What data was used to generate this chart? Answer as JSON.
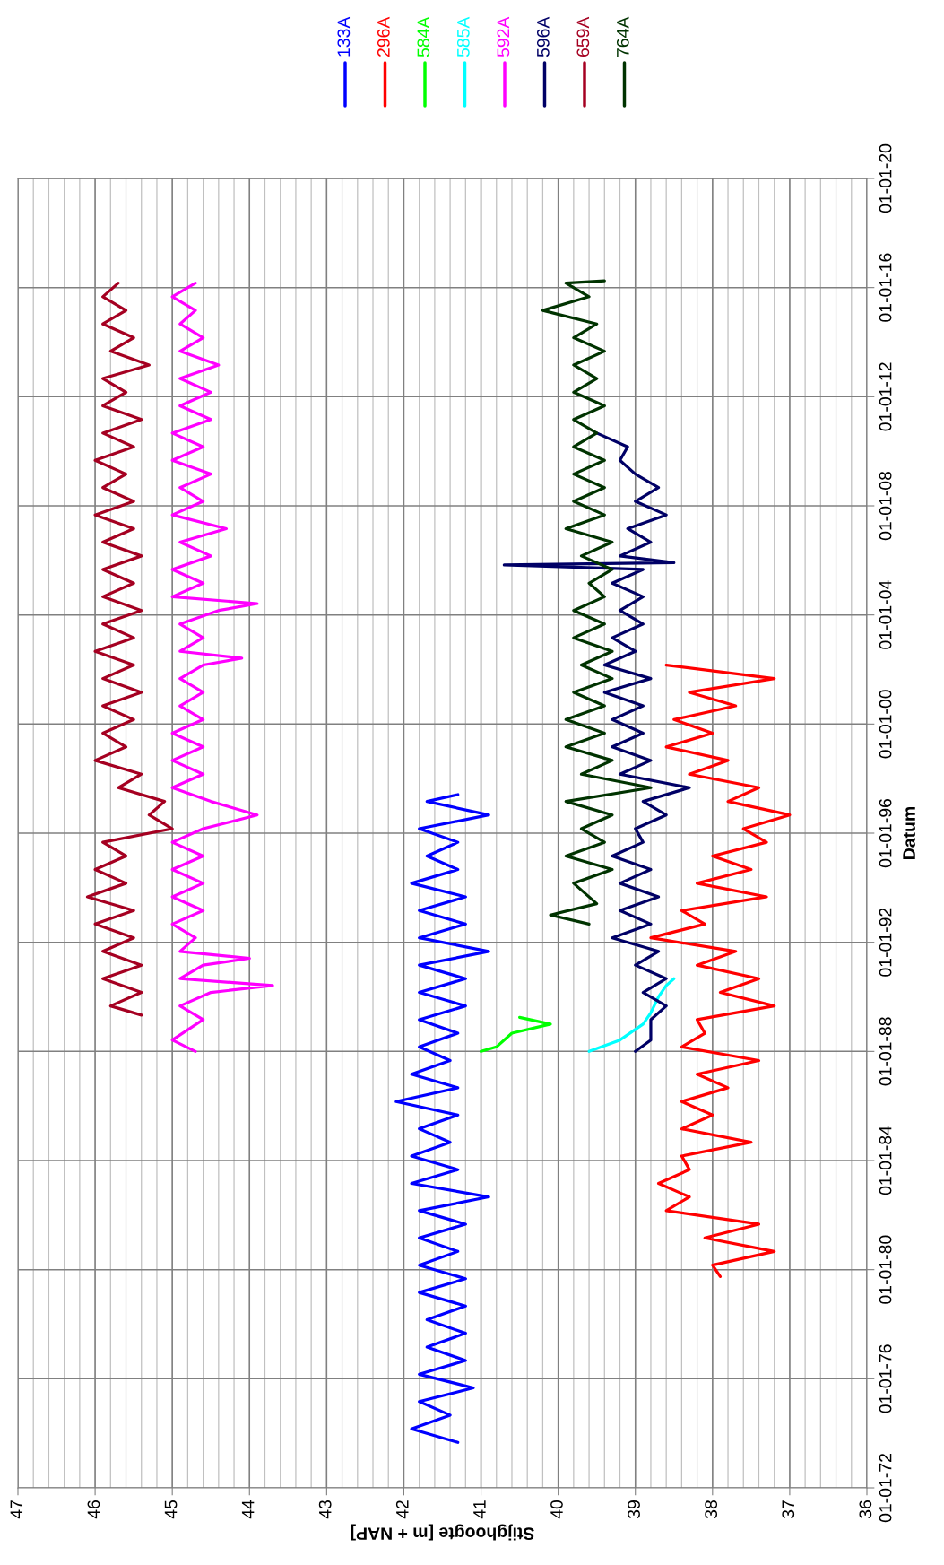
{
  "chart_data": {
    "type": "line",
    "orientation": "horizontal",
    "ylabel": "Datum",
    "xlabel": "Stijghoogte [m + NAP]",
    "ylim": [
      "1972-01-01",
      "2020-01-01"
    ],
    "xlim": [
      47,
      36
    ],
    "yticks": [
      {
        "value": "1972-01-01",
        "label": "01-01-72"
      },
      {
        "value": "1976-01-01",
        "label": "01-01-76"
      },
      {
        "value": "1980-01-01",
        "label": "01-01-80"
      },
      {
        "value": "1984-01-01",
        "label": "01-01-84"
      },
      {
        "value": "1988-01-01",
        "label": "01-01-88"
      },
      {
        "value": "1992-01-01",
        "label": "01-01-92"
      },
      {
        "value": "1996-01-01",
        "label": "01-01-96"
      },
      {
        "value": "2000-01-01",
        "label": "01-01-00"
      },
      {
        "value": "2004-01-01",
        "label": "01-01-04"
      },
      {
        "value": "2008-01-01",
        "label": "01-01-08"
      },
      {
        "value": "2012-01-01",
        "label": "01-01-12"
      },
      {
        "value": "2016-01-01",
        "label": "01-01-16"
      },
      {
        "value": "2020-01-01",
        "label": "01-01-20"
      }
    ],
    "xticks": [
      47,
      46,
      45,
      44,
      43,
      42,
      41,
      40,
      39,
      38,
      37,
      36
    ],
    "grid": true,
    "legend": "top right",
    "marker": "none",
    "line_style": "solid",
    "series": [
      {
        "name": "133A",
        "color": "#0000ff",
        "x": [
          "1973-09",
          "1974-03",
          "1974-09",
          "1975-03",
          "1975-09",
          "1976-03",
          "1976-09",
          "1977-03",
          "1977-09",
          "1978-03",
          "1978-09",
          "1979-03",
          "1979-09",
          "1980-03",
          "1980-09",
          "1981-03",
          "1981-09",
          "1982-03",
          "1982-09",
          "1983-03",
          "1983-09",
          "1984-03",
          "1984-09",
          "1985-03",
          "1985-09",
          "1986-03",
          "1986-09",
          "1987-03",
          "1987-09",
          "1988-03",
          "1988-09",
          "1989-03",
          "1989-09",
          "1990-03",
          "1990-09",
          "1991-03",
          "1991-09",
          "1992-03",
          "1992-09",
          "1993-03",
          "1993-09",
          "1994-03",
          "1994-09",
          "1995-03",
          "1995-09",
          "1996-03",
          "1996-09",
          "1997-03",
          "1997-06"
        ],
        "values": [
          41.3,
          41.9,
          41.4,
          41.8,
          41.1,
          41.8,
          41.2,
          41.7,
          41.2,
          41.7,
          41.2,
          41.8,
          41.2,
          41.8,
          41.3,
          41.8,
          41.2,
          41.8,
          40.9,
          41.9,
          41.3,
          41.9,
          41.4,
          41.8,
          41.3,
          42.1,
          41.3,
          41.9,
          41.4,
          41.8,
          41.3,
          41.8,
          41.2,
          41.8,
          41.2,
          41.8,
          40.9,
          41.8,
          41.2,
          41.8,
          41.2,
          41.9,
          41.3,
          41.7,
          41.3,
          41.8,
          40.9,
          41.7,
          41.3
        ]
      },
      {
        "name": "296A",
        "color": "#ff0000",
        "x": [
          "1979-10",
          "1980-03",
          "1980-09",
          "1981-03",
          "1981-09",
          "1982-03",
          "1982-09",
          "1983-03",
          "1983-09",
          "1984-03",
          "1984-09",
          "1985-03",
          "1985-09",
          "1986-03",
          "1986-09",
          "1987-03",
          "1987-09",
          "1988-03",
          "1988-09",
          "1989-03",
          "1989-09",
          "1990-03",
          "1990-09",
          "1991-03",
          "1991-09",
          "1992-03",
          "1992-09",
          "1993-03",
          "1993-09",
          "1994-03",
          "1994-09",
          "1995-03",
          "1995-09",
          "1996-03",
          "1996-09",
          "1997-03",
          "1997-09",
          "1998-03",
          "1998-09",
          "1999-03",
          "1999-09",
          "2000-03",
          "2000-09",
          "2001-03",
          "2001-09",
          "2002-03"
        ],
        "values": [
          37.9,
          38.0,
          37.2,
          38.1,
          37.4,
          38.6,
          38.3,
          38.7,
          38.3,
          38.4,
          37.5,
          38.4,
          38.0,
          38.4,
          37.8,
          38.2,
          37.4,
          38.4,
          38.1,
          38.2,
          37.2,
          37.9,
          37.4,
          38.2,
          37.7,
          38.8,
          38.1,
          38.4,
          37.3,
          38.2,
          37.5,
          38.0,
          37.3,
          37.6,
          37.0,
          37.8,
          37.4,
          38.3,
          37.8,
          38.6,
          38.0,
          38.5,
          37.7,
          38.3,
          37.2,
          38.6
        ]
      },
      {
        "name": "584A",
        "color": "#00ff00",
        "x": [
          "1988-01",
          "1988-03",
          "1988-09",
          "1989-01",
          "1989-04"
        ],
        "values": [
          41.0,
          40.8,
          40.6,
          40.1,
          40.5
        ]
      },
      {
        "name": "585A",
        "color": "#00ffff",
        "x": [
          "1988-01",
          "1988-06",
          "1989-01",
          "1989-06",
          "1990-01",
          "1990-06",
          "1990-09"
        ],
        "values": [
          39.6,
          39.2,
          38.9,
          38.8,
          38.7,
          38.6,
          38.5
        ]
      },
      {
        "name": "592A",
        "color": "#ff00ff",
        "x": [
          "1988-01",
          "1988-06",
          "1989-03",
          "1989-09",
          "1990-03",
          "1990-06",
          "1990-09",
          "1991-03",
          "1991-06",
          "1991-09",
          "1992-03",
          "1992-09",
          "1993-03",
          "1993-09",
          "1994-03",
          "1994-09",
          "1995-03",
          "1995-09",
          "1996-03",
          "1996-09",
          "1997-03",
          "1997-09",
          "1998-03",
          "1998-09",
          "1999-03",
          "1999-09",
          "2000-03",
          "2000-09",
          "2001-03",
          "2001-09",
          "2002-03",
          "2002-06",
          "2002-09",
          "2003-03",
          "2003-09",
          "2004-03",
          "2004-06",
          "2004-09",
          "2005-03",
          "2005-09",
          "2006-03",
          "2006-09",
          "2007-03",
          "2007-09",
          "2008-03",
          "2008-09",
          "2009-03",
          "2009-09",
          "2010-03",
          "2010-09",
          "2011-03",
          "2011-09",
          "2012-03",
          "2012-09",
          "2013-03",
          "2013-09",
          "2014-03",
          "2014-09",
          "2015-03",
          "2015-09",
          "2016-03"
        ],
        "values": [
          44.7,
          45.0,
          44.6,
          44.9,
          44.5,
          43.7,
          44.9,
          44.6,
          44.0,
          44.9,
          44.7,
          45.0,
          44.6,
          45.0,
          44.6,
          45.0,
          44.6,
          45.0,
          44.6,
          43.9,
          44.5,
          45.0,
          44.6,
          45.0,
          44.6,
          45.0,
          44.6,
          44.9,
          44.6,
          44.9,
          44.6,
          44.1,
          44.9,
          44.6,
          44.9,
          44.4,
          43.9,
          45.0,
          44.6,
          45.0,
          44.5,
          44.9,
          44.3,
          45.0,
          44.6,
          44.9,
          44.5,
          45.0,
          44.6,
          45.0,
          44.5,
          44.9,
          44.5,
          44.9,
          44.4,
          44.9,
          44.6,
          44.9,
          44.7,
          45.0,
          44.7
        ]
      },
      {
        "name": "596A",
        "color": "#000066",
        "x": [
          "1988-01",
          "1988-06",
          "1989-03",
          "1989-09",
          "1990-03",
          "1990-09",
          "1991-03",
          "1991-09",
          "1992-03",
          "1992-09",
          "1993-03",
          "1993-09",
          "1994-03",
          "1994-09",
          "1995-03",
          "1995-09",
          "1996-03",
          "1996-09",
          "1997-03",
          "1997-09",
          "1998-03",
          "1998-09",
          "1999-03",
          "1999-09",
          "2000-03",
          "2000-09",
          "2001-03",
          "2001-09",
          "2002-03",
          "2002-09",
          "2003-03",
          "2003-09",
          "2004-03",
          "2004-09",
          "2005-03",
          "2005-09",
          "2005-11",
          "2005-12",
          "2006-03",
          "2006-09",
          "2007-03",
          "2007-09",
          "2008-03",
          "2008-09",
          "2009-03",
          "2009-09",
          "2010-03",
          "2010-09"
        ],
        "values": [
          39.0,
          38.8,
          38.8,
          38.6,
          38.9,
          38.6,
          39.0,
          38.7,
          39.3,
          38.8,
          39.2,
          38.7,
          39.2,
          38.8,
          39.3,
          38.9,
          39.0,
          38.6,
          38.9,
          38.3,
          39.2,
          38.8,
          39.3,
          38.9,
          39.3,
          38.9,
          39.4,
          38.8,
          39.4,
          39.0,
          39.3,
          38.9,
          39.2,
          38.9,
          39.3,
          38.9,
          40.7,
          38.5,
          39.2,
          38.8,
          39.1,
          38.6,
          39.0,
          38.7,
          39.0,
          39.2,
          39.1,
          39.5
        ]
      },
      {
        "name": "659A",
        "color": "#a50021",
        "x": [
          "1989-05",
          "1989-09",
          "1990-03",
          "1990-09",
          "1991-03",
          "1991-09",
          "1992-03",
          "1992-09",
          "1993-03",
          "1993-09",
          "1994-03",
          "1994-09",
          "1995-03",
          "1995-09",
          "1996-03",
          "1996-09",
          "1997-03",
          "1997-09",
          "1998-03",
          "1998-09",
          "1999-03",
          "1999-09",
          "2000-03",
          "2000-09",
          "2001-03",
          "2001-09",
          "2002-03",
          "2002-09",
          "2003-03",
          "2003-09",
          "2004-03",
          "2004-09",
          "2005-03",
          "2005-09",
          "2006-03",
          "2006-09",
          "2007-03",
          "2007-09",
          "2008-03",
          "2008-09",
          "2009-03",
          "2009-09",
          "2010-03",
          "2010-09",
          "2011-03",
          "2011-09",
          "2012-03",
          "2012-09",
          "2013-03",
          "2013-09",
          "2014-03",
          "2014-09",
          "2015-03",
          "2015-09",
          "2016-03"
        ],
        "values": [
          45.4,
          45.8,
          45.4,
          45.9,
          45.4,
          45.9,
          45.5,
          46.0,
          45.5,
          46.1,
          45.6,
          46.0,
          45.6,
          45.9,
          45.0,
          45.3,
          45.1,
          45.7,
          45.4,
          46.0,
          45.6,
          45.9,
          45.5,
          45.9,
          45.4,
          45.9,
          45.5,
          46.0,
          45.5,
          45.9,
          45.4,
          45.9,
          45.5,
          45.9,
          45.4,
          45.9,
          45.5,
          46.0,
          45.5,
          45.9,
          45.6,
          46.0,
          45.5,
          45.9,
          45.4,
          45.9,
          45.6,
          45.9,
          45.3,
          45.8,
          45.5,
          45.9,
          45.6,
          45.9,
          45.7
        ]
      },
      {
        "name": "764A",
        "color": "#003300",
        "x": [
          "1992-09",
          "1993-01",
          "1993-06",
          "1994-03",
          "1994-09",
          "1995-03",
          "1995-09",
          "1996-03",
          "1996-09",
          "1997-03",
          "1997-09",
          "1998-03",
          "1998-09",
          "1999-03",
          "1999-09",
          "2000-03",
          "2000-09",
          "2001-03",
          "2001-09",
          "2002-03",
          "2002-09",
          "2003-03",
          "2003-09",
          "2004-03",
          "2004-09",
          "2005-03",
          "2005-09",
          "2006-03",
          "2006-09",
          "2007-03",
          "2007-09",
          "2008-03",
          "2008-09",
          "2009-03",
          "2009-09",
          "2010-03",
          "2010-09",
          "2011-03",
          "2011-09",
          "2012-03",
          "2012-09",
          "2013-03",
          "2013-09",
          "2014-03",
          "2014-09",
          "2015-03",
          "2015-09",
          "2016-03",
          "2016-04"
        ],
        "values": [
          39.6,
          40.1,
          39.5,
          39.8,
          39.3,
          39.9,
          39.4,
          39.7,
          39.3,
          39.9,
          38.8,
          39.7,
          39.3,
          39.9,
          39.4,
          39.9,
          39.4,
          39.8,
          39.3,
          39.7,
          39.3,
          39.8,
          39.4,
          39.8,
          39.4,
          39.6,
          39.3,
          39.7,
          39.3,
          39.9,
          39.4,
          39.8,
          39.4,
          39.8,
          39.4,
          39.8,
          39.5,
          39.8,
          39.4,
          39.8,
          39.5,
          39.8,
          39.4,
          39.8,
          39.5,
          40.2,
          39.6,
          39.9,
          39.4
        ]
      }
    ]
  }
}
